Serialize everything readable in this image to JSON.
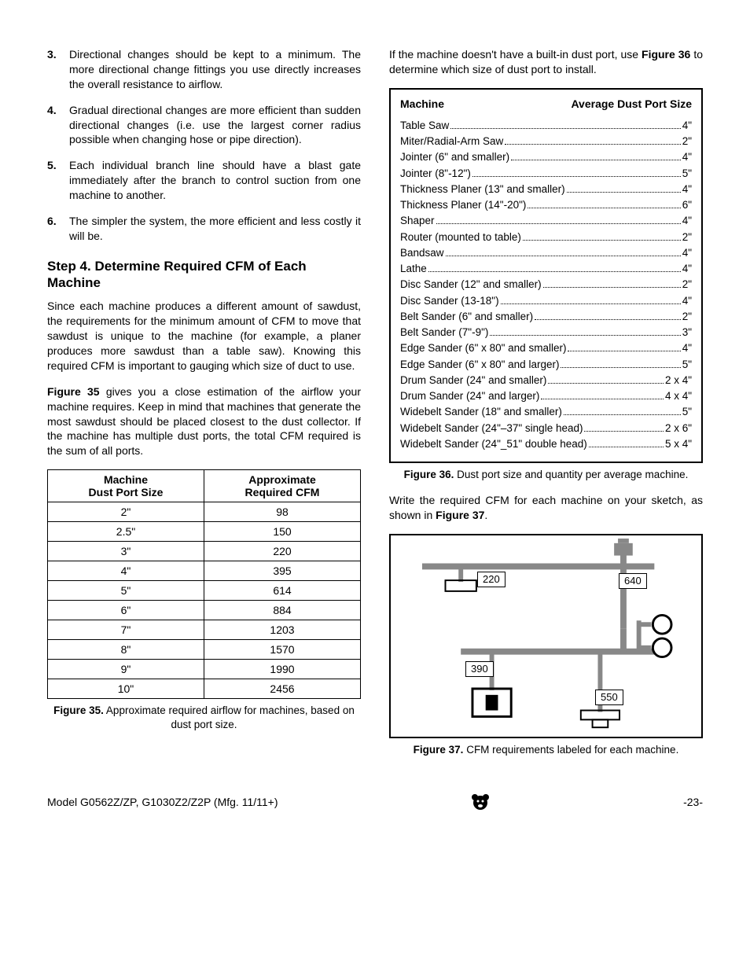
{
  "left": {
    "steps": [
      {
        "n": "3.",
        "t": "Directional changes should be kept to a minimum. The more directional change fittings you use directly increases the overall resistance to airflow."
      },
      {
        "n": "4.",
        "t": "Gradual directional changes are more efficient than sudden directional changes (i.e. use the largest corner radius possible when changing hose or pipe direction)."
      },
      {
        "n": "5.",
        "t": "Each individual branch line should have a blast gate immediately after the branch to control suction from one machine to another."
      },
      {
        "n": "6.",
        "t": "The simpler the system, the more efficient and less costly it will be."
      }
    ],
    "heading": "Step 4. Determine Required CFM of Each Machine",
    "para1": "Since each machine produces a different amount of sawdust, the requirements for the minimum amount of CFM to move that sawdust is unique to the machine (for example, a planer produces more sawdust than a table saw). Knowing this required CFM is important to gauging which size of duct to use.",
    "para2_pre": "Figure 35",
    "para2_post": " gives you a close estimation of the airflow your machine requires. Keep in mind that machines that generate the most sawdust should be placed closest to the dust collector. If the machine has multiple dust ports, the total CFM required is the sum of all ports.",
    "table": {
      "h1": "Machine\nDust Port Size",
      "h2": "Approximate\nRequired CFM",
      "rows": [
        [
          "2\"",
          "98"
        ],
        [
          "2.5\"",
          "150"
        ],
        [
          "3\"",
          "220"
        ],
        [
          "4\"",
          "395"
        ],
        [
          "5\"",
          "614"
        ],
        [
          "6\"",
          "884"
        ],
        [
          "7\"",
          "1203"
        ],
        [
          "8\"",
          "1570"
        ],
        [
          "9\"",
          "1990"
        ],
        [
          "10\"",
          "2456"
        ]
      ]
    },
    "caption35_pre": "Figure 35.",
    "caption35_post": " Approximate required airflow for machines, based on dust port size."
  },
  "right": {
    "intro_pre": "If the machine doesn't have a built-in dust port, use ",
    "intro_bold": "Figure 36",
    "intro_post": " to determine which size of dust port to install.",
    "port_h1": "Machine",
    "port_h2": "Average Dust Port Size",
    "ports": [
      {
        "m": "Table Saw",
        "s": "4\""
      },
      {
        "m": "Miter/Radial-Arm Saw",
        "s": "2\""
      },
      {
        "m": "Jointer (6\" and smaller) ",
        "s": "4\""
      },
      {
        "m": "Jointer (8\"-12\") ",
        "s": "5\""
      },
      {
        "m": "Thickness Planer (13\" and smaller)",
        "s": "4\""
      },
      {
        "m": "Thickness Planer (14\"-20\") ",
        "s": "6\""
      },
      {
        "m": "Shaper",
        "s": "4\""
      },
      {
        "m": "Router (mounted to table)",
        "s": "2\""
      },
      {
        "m": "Bandsaw",
        "s": "4\""
      },
      {
        "m": "Lathe",
        "s": "4\""
      },
      {
        "m": "Disc Sander (12\" and smaller)",
        "s": "2\""
      },
      {
        "m": "Disc Sander (13-18\")",
        "s": "4\""
      },
      {
        "m": "Belt Sander (6\" and smaller) ",
        "s": "2\""
      },
      {
        "m": "Belt Sander (7\"-9\") ",
        "s": "3\""
      },
      {
        "m": "Edge Sander (6\" x 80\" and smaller)",
        "s": "4\""
      },
      {
        "m": "Edge Sander (6\" x 80\" and larger) ",
        "s": "5\""
      },
      {
        "m": "Drum Sander (24\" and smaller)",
        "s": "2 x 4\""
      },
      {
        "m": "Drum Sander (24\" and larger) ",
        "s": "4 x 4\""
      },
      {
        "m": "Widebelt Sander (18\" and smaller)",
        "s": "5\""
      },
      {
        "m": "Widebelt Sander (24\"–37\" single head) ",
        "s": "2 x 6\""
      },
      {
        "m": "Widebelt Sander (24\"_51\" double head) ",
        "s": "5 x 4\""
      }
    ],
    "caption36_pre": "Figure 36.",
    "caption36_post": " Dust port size and quantity per average machine.",
    "para_pre": "Write the required CFM for each machine on your sketch, as shown in ",
    "para_bold": "Figure 37",
    "para_post": ".",
    "fig37": {
      "a": "220",
      "b": "640",
      "c": "390",
      "d": "550"
    },
    "caption37_pre": "Figure 37.",
    "caption37_post": " CFM requirements labeled for each machine."
  },
  "footer": {
    "model": "Model G0562Z/ZP, G1030Z2/Z2P (Mfg. 11/11+)",
    "page": "-23-"
  }
}
